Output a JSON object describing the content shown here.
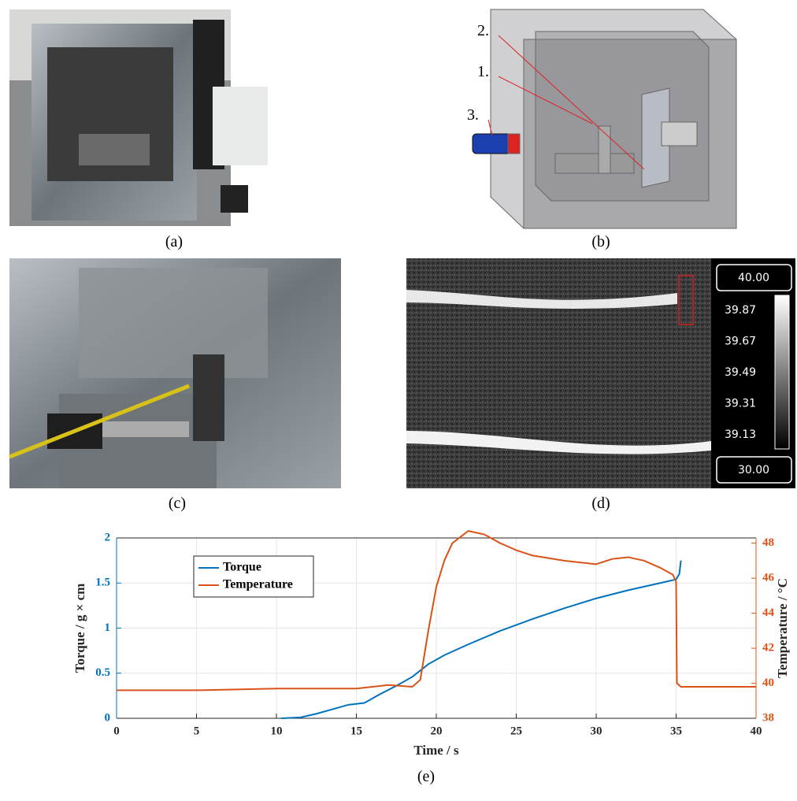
{
  "panels": {
    "a": {
      "label": "(a)"
    },
    "b": {
      "label": "(b)",
      "callouts": [
        "2.",
        "1.",
        "3."
      ]
    },
    "c": {
      "label": "(c)"
    },
    "d": {
      "label": "(d)",
      "scale_max": "40.00",
      "scale_min": "30.00",
      "scale_labels": [
        "39.87",
        "39.67",
        "39.49",
        "39.31",
        "39.13"
      ]
    },
    "e": {
      "label": "(e)"
    }
  },
  "chart_data": {
    "type": "line",
    "xlabel": "Time / s",
    "ylabel": "Torque / g × cm",
    "y2label": "Temperature / °C",
    "xlim": [
      0,
      40
    ],
    "xticks": [
      0,
      5,
      10,
      15,
      20,
      25,
      30,
      35,
      40
    ],
    "ylim": [
      0,
      2
    ],
    "yticks": [
      0,
      0.5,
      1,
      1.5,
      2
    ],
    "y2lim": [
      38,
      48.3
    ],
    "y2ticks": [
      38,
      40,
      42,
      44,
      46,
      48
    ],
    "grid": true,
    "legend": "upper-left",
    "series": [
      {
        "name": "Torque",
        "color": "#0072bd",
        "axis": "y",
        "x": [
          10.3,
          11.5,
          12.5,
          13.5,
          14.5,
          15.5,
          16.5,
          17.5,
          18.5,
          19.5,
          20.5,
          22,
          24,
          26,
          28,
          30,
          32,
          34,
          35,
          35.2,
          35.3
        ],
        "values": [
          0,
          0.01,
          0.05,
          0.1,
          0.15,
          0.17,
          0.27,
          0.36,
          0.46,
          0.6,
          0.7,
          0.82,
          0.97,
          1.1,
          1.22,
          1.33,
          1.42,
          1.5,
          1.54,
          1.6,
          1.75
        ]
      },
      {
        "name": "Temperature",
        "color": "#d95319",
        "axis": "y2",
        "x": [
          0,
          5,
          10,
          15,
          17,
          18.5,
          19,
          19.5,
          20,
          20.5,
          21,
          22,
          23,
          24,
          25,
          26,
          28,
          30,
          31,
          32,
          33,
          34,
          34.8,
          35,
          35.05,
          35.3,
          37,
          40
        ],
        "values": [
          39.6,
          39.6,
          39.7,
          39.7,
          39.9,
          39.8,
          40.2,
          43,
          45.5,
          47,
          48,
          48.7,
          48.5,
          48,
          47.6,
          47.3,
          47,
          46.8,
          47.1,
          47.2,
          47,
          46.6,
          46.2,
          45.8,
          40,
          39.8,
          39.8,
          39.8
        ]
      }
    ]
  }
}
